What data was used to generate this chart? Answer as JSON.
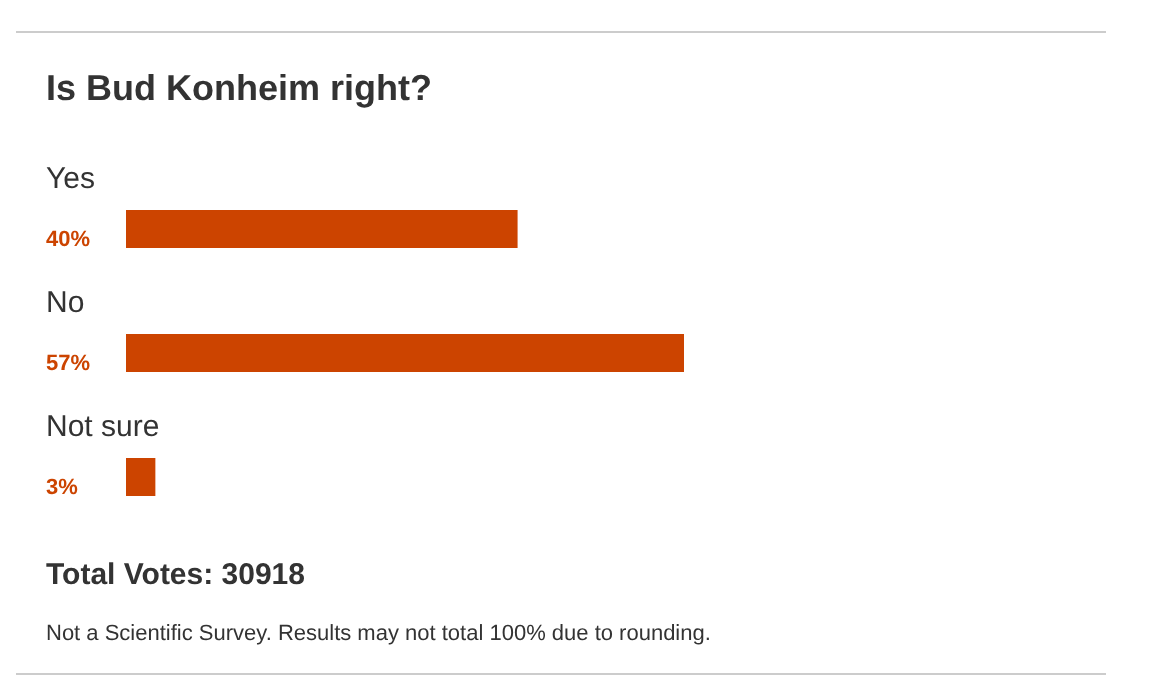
{
  "chart_data": {
    "type": "bar",
    "orientation": "horizontal",
    "title": "Is Bud Konheim right?",
    "categories": [
      "Yes",
      "No",
      "Not sure"
    ],
    "values": [
      40,
      57,
      3
    ],
    "value_labels": [
      "40%",
      "57%",
      "3%"
    ],
    "color": "#cc4400",
    "annotations": [
      "Total Votes: 30918",
      "Not a Scientific Survey. Results may not total 100% due to rounding."
    ]
  }
}
